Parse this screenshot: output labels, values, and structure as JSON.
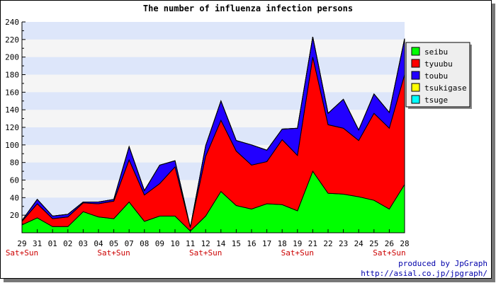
{
  "chart_data": {
    "type": "area",
    "stacked": true,
    "title": "The number of influenza infection persons",
    "xlabel": "",
    "ylabel": "",
    "ylim": [
      0,
      240
    ],
    "y_ticks": [
      20,
      40,
      60,
      80,
      100,
      120,
      140,
      160,
      180,
      200,
      220,
      240
    ],
    "grid": "horizontal bands",
    "legend_position": "right",
    "categories": [
      "29",
      "31",
      "01",
      "02",
      "03",
      "04",
      "05",
      "07",
      "08",
      "09",
      "10",
      "11",
      "12",
      "14",
      "15",
      "16",
      "17",
      "18",
      "19",
      "21",
      "22",
      "23",
      "24",
      "25",
      "26",
      "28"
    ],
    "weekend_label": "Sat+Sun",
    "weekend_categories": [
      "29",
      "05",
      "12",
      "19",
      "26"
    ],
    "series": [
      {
        "name": "seibu",
        "color": "#00ff00",
        "values": [
          9,
          17,
          7,
          7,
          24,
          18,
          16,
          35,
          13,
          19,
          19,
          2,
          19,
          47,
          31,
          27,
          33,
          32,
          25,
          70,
          45,
          44,
          41,
          37,
          27,
          55
        ]
      },
      {
        "name": "tyuubu",
        "color": "#ff0000",
        "values": [
          4,
          16,
          9,
          11,
          10,
          15,
          20,
          48,
          30,
          37,
          56,
          4,
          68,
          81,
          62,
          50,
          48,
          74,
          63,
          130,
          78,
          75,
          64,
          99,
          92,
          125
        ]
      },
      {
        "name": "toubu",
        "color": "#2200ff",
        "values": [
          1,
          5,
          3,
          3,
          1,
          2,
          2,
          15,
          5,
          21,
          7,
          0,
          12,
          22,
          12,
          23,
          13,
          12,
          31,
          23,
          13,
          33,
          12,
          22,
          18,
          41
        ]
      },
      {
        "name": "tsukigase",
        "color": "#ffff00",
        "values": [
          0,
          0,
          0,
          0,
          0,
          0,
          0,
          0,
          0,
          0,
          0,
          0,
          0,
          0,
          0,
          0,
          0,
          0,
          0,
          0,
          0,
          0,
          0,
          0,
          0,
          0
        ]
      },
      {
        "name": "tsuge",
        "color": "#00ffff",
        "values": [
          0,
          0,
          0,
          0,
          0,
          0,
          0,
          0,
          0,
          0,
          0,
          0,
          0,
          0,
          0,
          0,
          0,
          0,
          0,
          0,
          0,
          0,
          0,
          0,
          0,
          0
        ]
      }
    ]
  },
  "credits": {
    "line1": "produced by JpGraph",
    "line2": "http://asial.co.jp/jpgraph/"
  }
}
